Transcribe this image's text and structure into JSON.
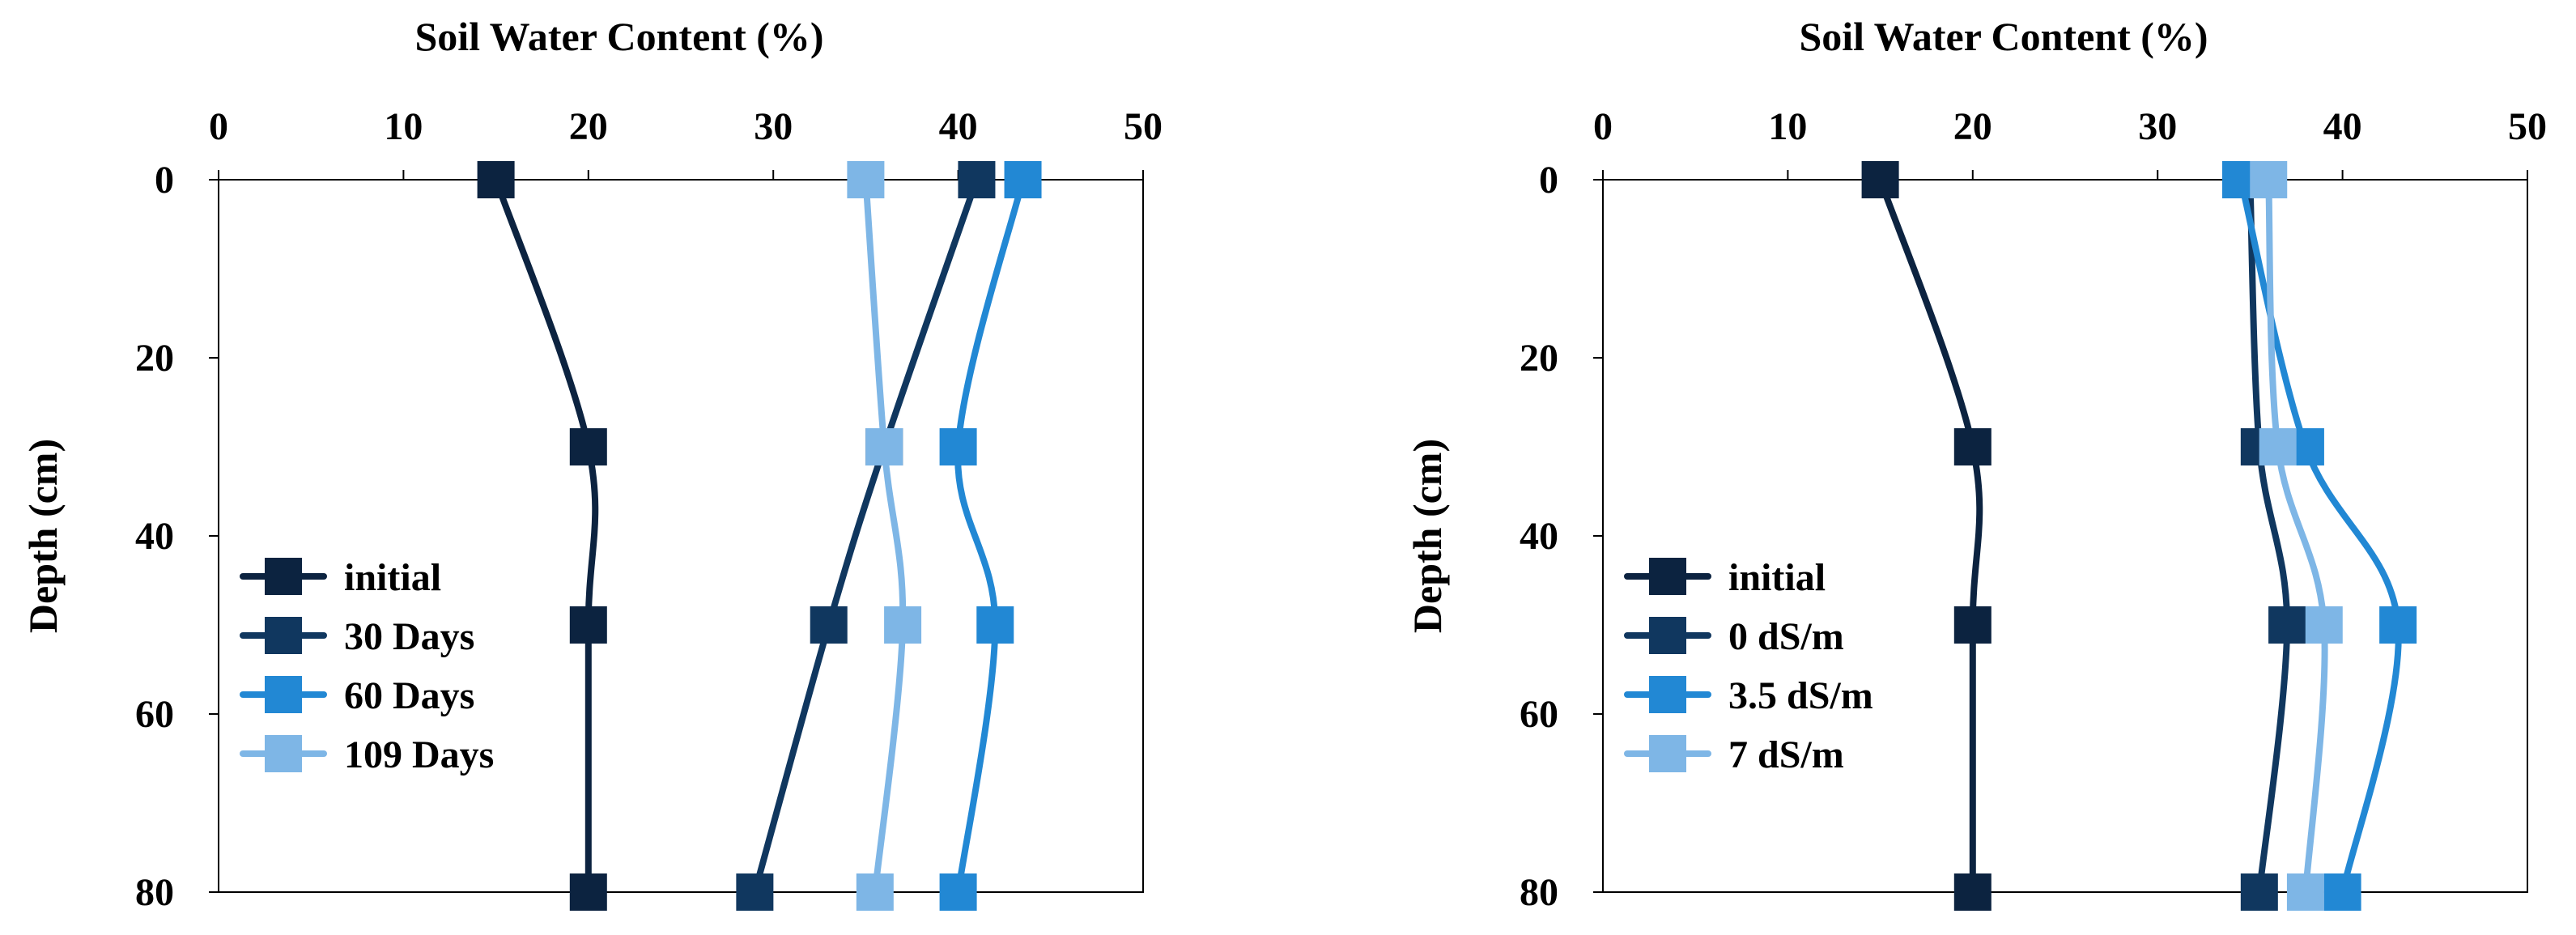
{
  "chart_data": [
    {
      "type": "line",
      "title": "",
      "xlabel": "Soil Water Content (%)",
      "ylabel": "Depth (cm)",
      "xlim": [
        0,
        50
      ],
      "ylim": [
        0,
        80
      ],
      "y_inverted": true,
      "x_axis_position": "top",
      "x_ticks": [
        "0",
        "10",
        "20",
        "30",
        "40",
        "50"
      ],
      "y_ticks": [
        "0",
        "20",
        "40",
        "60",
        "80"
      ],
      "grid": false,
      "legend_position": "bottom-left",
      "series": [
        {
          "name": "initial",
          "color": "#0c2340",
          "points": [
            [
              15,
              0
            ],
            [
              20,
              30
            ],
            [
              20,
              50
            ],
            [
              20,
              80
            ]
          ]
        },
        {
          "name": "30 Days",
          "color": "#10375f",
          "points": [
            [
              41,
              0
            ],
            [
              36,
              30
            ],
            [
              33,
              50
            ],
            [
              29,
              80
            ]
          ]
        },
        {
          "name": "60 Days",
          "color": "#2288d4",
          "points": [
            [
              43.5,
              0
            ],
            [
              40,
              30
            ],
            [
              42,
              50
            ],
            [
              40,
              80
            ]
          ]
        },
        {
          "name": "109 Days",
          "color": "#7eb6e6",
          "points": [
            [
              35,
              0
            ],
            [
              36,
              30
            ],
            [
              37,
              50
            ],
            [
              35.5,
              80
            ]
          ]
        }
      ]
    },
    {
      "type": "line",
      "title": "",
      "xlabel": "Soil Water Content (%)",
      "ylabel": "Depth (cm)",
      "xlim": [
        0,
        50
      ],
      "ylim": [
        0,
        80
      ],
      "y_inverted": true,
      "x_axis_position": "top",
      "x_ticks": [
        "0",
        "10",
        "20",
        "30",
        "40",
        "50"
      ],
      "y_ticks": [
        "0",
        "20",
        "40",
        "60",
        "80"
      ],
      "grid": false,
      "legend_position": "bottom-left",
      "series": [
        {
          "name": "initial",
          "color": "#0c2340",
          "points": [
            [
              15,
              0
            ],
            [
              20,
              30
            ],
            [
              20,
              50
            ],
            [
              20,
              80
            ]
          ]
        },
        {
          "name": "0 dS/m",
          "color": "#10375f",
          "points": [
            [
              35,
              0
            ],
            [
              35.5,
              30
            ],
            [
              37,
              50
            ],
            [
              35.5,
              80
            ]
          ]
        },
        {
          "name": "3.5 dS/m",
          "color": "#2288d4",
          "points": [
            [
              34.5,
              0
            ],
            [
              38,
              30
            ],
            [
              43,
              50
            ],
            [
              40,
              80
            ]
          ]
        },
        {
          "name": "7 dS/m",
          "color": "#7eb6e6",
          "points": [
            [
              36,
              0
            ],
            [
              36.5,
              30
            ],
            [
              39,
              50
            ],
            [
              38,
              80
            ]
          ]
        }
      ]
    }
  ]
}
